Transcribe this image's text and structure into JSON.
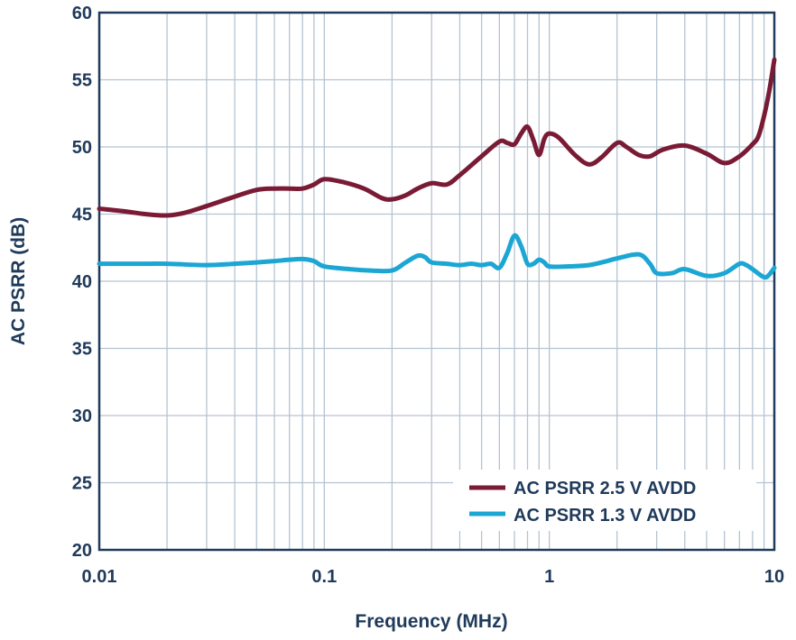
{
  "chart_data": {
    "type": "line",
    "title": "",
    "xlabel": "Frequency (MHz)",
    "ylabel": "AC PSRR (dB)",
    "xscale": "log",
    "xlim": [
      0.01,
      10
    ],
    "ylim": [
      20,
      60
    ],
    "grid": true,
    "x_ticks": [
      {
        "value": 0.01,
        "label": "0.01"
      },
      {
        "value": 0.1,
        "label": "0.1"
      },
      {
        "value": 1,
        "label": "1"
      },
      {
        "value": 10,
        "label": "10"
      }
    ],
    "y_ticks": [
      {
        "value": 20,
        "label": "20"
      },
      {
        "value": 25,
        "label": "25"
      },
      {
        "value": 30,
        "label": "30"
      },
      {
        "value": 35,
        "label": "35"
      },
      {
        "value": 40,
        "label": "40"
      },
      {
        "value": 45,
        "label": "45"
      },
      {
        "value": 50,
        "label": "50"
      },
      {
        "value": 55,
        "label": "55"
      },
      {
        "value": 60,
        "label": "60"
      }
    ],
    "legend_position": "bottom-right",
    "series": [
      {
        "name": "AC PSRR 2.5 V AVDD",
        "color": "#7a1b35",
        "points": [
          [
            0.01,
            45.4
          ],
          [
            0.013,
            45.2
          ],
          [
            0.016,
            45.0
          ],
          [
            0.02,
            44.9
          ],
          [
            0.024,
            45.1
          ],
          [
            0.03,
            45.6
          ],
          [
            0.04,
            46.3
          ],
          [
            0.05,
            46.8
          ],
          [
            0.06,
            46.9
          ],
          [
            0.07,
            46.9
          ],
          [
            0.08,
            46.9
          ],
          [
            0.09,
            47.2
          ],
          [
            0.1,
            47.6
          ],
          [
            0.12,
            47.4
          ],
          [
            0.15,
            46.9
          ],
          [
            0.18,
            46.2
          ],
          [
            0.2,
            46.1
          ],
          [
            0.23,
            46.4
          ],
          [
            0.26,
            46.9
          ],
          [
            0.3,
            47.3
          ],
          [
            0.35,
            47.2
          ],
          [
            0.4,
            47.9
          ],
          [
            0.5,
            49.3
          ],
          [
            0.6,
            50.4
          ],
          [
            0.65,
            50.3
          ],
          [
            0.7,
            50.2
          ],
          [
            0.75,
            51.0
          ],
          [
            0.8,
            51.5
          ],
          [
            0.85,
            50.5
          ],
          [
            0.9,
            49.4
          ],
          [
            0.95,
            50.6
          ],
          [
            1.0,
            51.0
          ],
          [
            1.1,
            50.7
          ],
          [
            1.3,
            49.4
          ],
          [
            1.5,
            48.7
          ],
          [
            1.7,
            49.2
          ],
          [
            2.0,
            50.3
          ],
          [
            2.2,
            50.0
          ],
          [
            2.5,
            49.4
          ],
          [
            2.8,
            49.3
          ],
          [
            3.2,
            49.8
          ],
          [
            4.0,
            50.1
          ],
          [
            5.0,
            49.5
          ],
          [
            6.0,
            48.8
          ],
          [
            7.0,
            49.3
          ],
          [
            8.0,
            50.2
          ],
          [
            8.5,
            50.8
          ],
          [
            9.0,
            52.3
          ],
          [
            9.5,
            54.2
          ],
          [
            10.0,
            56.5
          ]
        ]
      },
      {
        "name": "AC PSRR 1.3 V AVDD",
        "color": "#1ba6d3",
        "points": [
          [
            0.01,
            41.3
          ],
          [
            0.015,
            41.3
          ],
          [
            0.02,
            41.3
          ],
          [
            0.03,
            41.2
          ],
          [
            0.04,
            41.3
          ],
          [
            0.05,
            41.4
          ],
          [
            0.06,
            41.5
          ],
          [
            0.07,
            41.6
          ],
          [
            0.08,
            41.65
          ],
          [
            0.09,
            41.5
          ],
          [
            0.1,
            41.1
          ],
          [
            0.13,
            40.9
          ],
          [
            0.16,
            40.8
          ],
          [
            0.2,
            40.8
          ],
          [
            0.23,
            41.4
          ],
          [
            0.26,
            41.9
          ],
          [
            0.28,
            41.8
          ],
          [
            0.3,
            41.4
          ],
          [
            0.35,
            41.3
          ],
          [
            0.4,
            41.2
          ],
          [
            0.45,
            41.3
          ],
          [
            0.5,
            41.2
          ],
          [
            0.55,
            41.3
          ],
          [
            0.6,
            41.0
          ],
          [
            0.65,
            42.1
          ],
          [
            0.7,
            43.4
          ],
          [
            0.75,
            42.6
          ],
          [
            0.8,
            41.3
          ],
          [
            0.85,
            41.3
          ],
          [
            0.9,
            41.6
          ],
          [
            0.95,
            41.4
          ],
          [
            1.0,
            41.1
          ],
          [
            1.2,
            41.1
          ],
          [
            1.5,
            41.2
          ],
          [
            1.8,
            41.5
          ],
          [
            2.0,
            41.7
          ],
          [
            2.5,
            42.0
          ],
          [
            2.8,
            41.3
          ],
          [
            3.0,
            40.6
          ],
          [
            3.5,
            40.6
          ],
          [
            4.0,
            40.9
          ],
          [
            5.0,
            40.4
          ],
          [
            6.0,
            40.6
          ],
          [
            7.0,
            41.3
          ],
          [
            7.5,
            41.2
          ],
          [
            8.0,
            40.9
          ],
          [
            9.0,
            40.3
          ],
          [
            9.5,
            40.5
          ],
          [
            10.0,
            41.0
          ]
        ]
      }
    ]
  }
}
